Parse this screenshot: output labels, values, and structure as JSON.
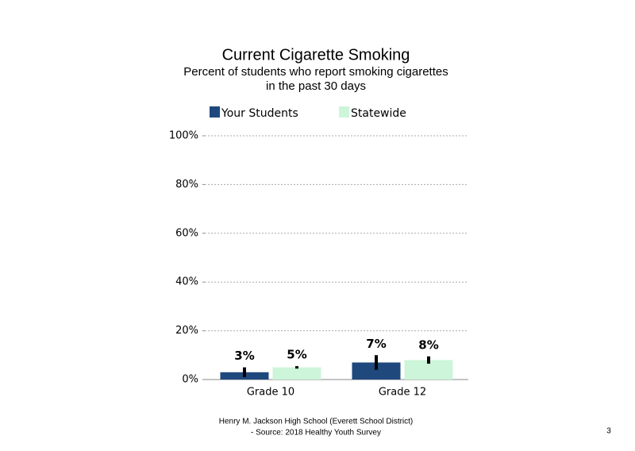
{
  "chart_data": {
    "type": "bar",
    "title": "Current Cigarette Smoking",
    "subtitle": [
      "Percent of students who report smoking cigarettes",
      "in the past 30 days"
    ],
    "categories": [
      "Grade 10",
      "Grade 12"
    ],
    "series": [
      {
        "name": "Your Students",
        "color": "#1f497d",
        "values": [
          3,
          7
        ],
        "value_labels": [
          "3%",
          "7%"
        ],
        "errors": [
          2,
          3
        ]
      },
      {
        "name": "Statewide",
        "color": "#ccf5d9",
        "values": [
          5,
          8
        ],
        "value_labels": [
          "5%",
          "8%"
        ],
        "errors": [
          0.5,
          1.5
        ]
      }
    ],
    "ylim": [
      0,
      100
    ],
    "yticks": [
      {
        "value": 0,
        "label": "0%"
      },
      {
        "value": 20,
        "label": "20%"
      },
      {
        "value": 40,
        "label": "40%"
      },
      {
        "value": 60,
        "label": "60%"
      },
      {
        "value": 80,
        "label": "80%"
      },
      {
        "value": 100,
        "label": "100%"
      }
    ],
    "grid": true,
    "footer": [
      "Henry M. Jackson High School (Everett School District)",
      "- Source: 2018 Healthy Youth Survey"
    ],
    "page_number": "3"
  }
}
